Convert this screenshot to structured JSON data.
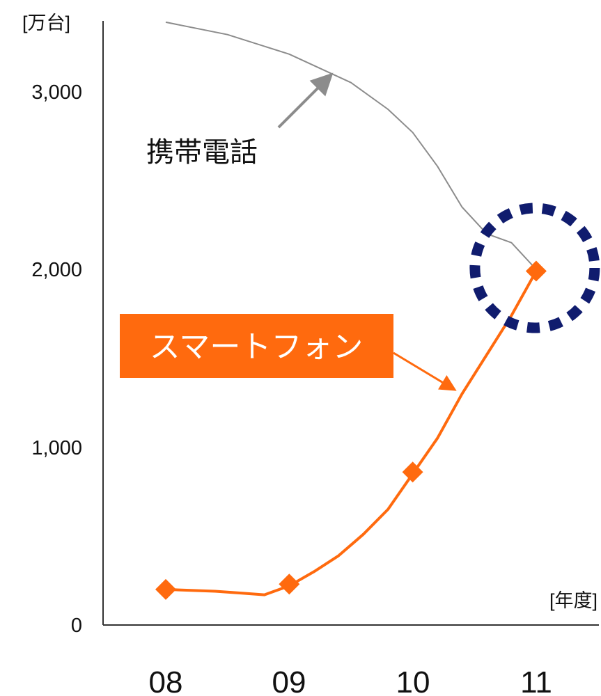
{
  "chart_data": {
    "type": "line",
    "categories": [
      "08",
      "09",
      "10",
      "11"
    ],
    "y_unit_label": "[万台]",
    "x_unit_label": "[年度]",
    "ylim": [
      0,
      3400
    ],
    "yticks": [
      {
        "value": 0,
        "label": "0"
      },
      {
        "value": 1000,
        "label": "1,000"
      },
      {
        "value": 2000,
        "label": "2,000"
      },
      {
        "value": 3000,
        "label": "3,000"
      }
    ],
    "grid": false,
    "series": [
      {
        "name": "携帯電話",
        "color": "#8c8c8c",
        "x": [
          0,
          0.5,
          1,
          1.5,
          1.8,
          2,
          2.2,
          2.4,
          2.6,
          2.8,
          3
        ],
        "values": [
          3390,
          3320,
          3210,
          3050,
          2900,
          2770,
          2580,
          2350,
          2200,
          2150,
          2000
        ]
      },
      {
        "name": "スマートフォン",
        "color": "#ff6a0e",
        "x": [
          0,
          0.4,
          0.6,
          0.8,
          1,
          1.2,
          1.4,
          1.6,
          1.8,
          2,
          2.2,
          2.4,
          2.6,
          2.8,
          3
        ],
        "values": [
          200,
          190,
          180,
          170,
          220,
          300,
          390,
          510,
          650,
          850,
          1050,
          1300,
          1520,
          1740,
          1990
        ],
        "markers_at": [
          0,
          1,
          2,
          3
        ],
        "marker_values": [
          200,
          230,
          860,
          1990
        ],
        "marker_color": "#ff6a0e"
      }
    ],
    "annotations": [
      {
        "text": "携帯電話",
        "target_series": "携帯電話"
      },
      {
        "text": "スマートフォン",
        "target_series": "スマートフォン",
        "box_color": "#ff6a0e",
        "text_color": "#ffffff"
      }
    ],
    "highlight": {
      "category": "11",
      "value": 2000,
      "style": "dashed-circle",
      "color": "#101c6e"
    }
  }
}
